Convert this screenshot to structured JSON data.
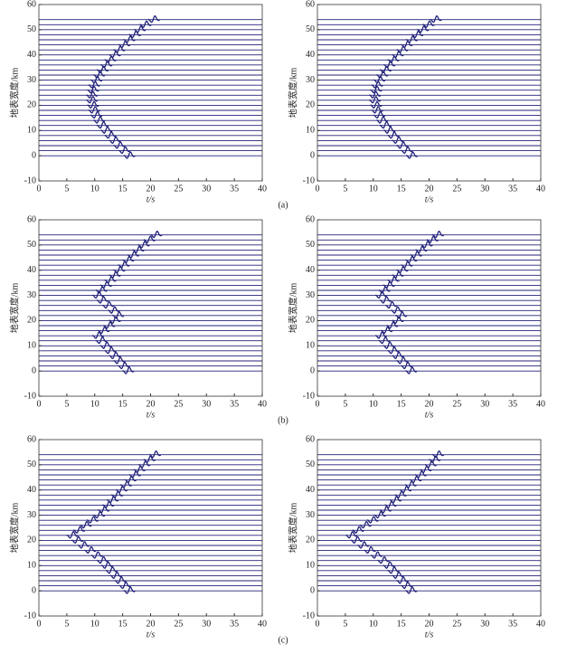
{
  "chart_data": [
    {
      "type": "seismic",
      "xlabel": "t/s",
      "ylabel": "地表宽度/km",
      "xlim": [
        0,
        40
      ],
      "ylim": [
        -10,
        60
      ],
      "xticks": [
        0,
        5,
        10,
        15,
        20,
        25,
        30,
        35,
        40
      ],
      "yticks": [
        -10,
        0,
        10,
        20,
        30,
        40,
        50,
        60
      ],
      "color": "#23237a",
      "offsets": [
        0,
        2,
        4,
        6,
        8,
        10,
        12,
        14,
        16,
        18,
        20,
        22,
        24,
        26,
        28,
        30,
        32,
        34,
        36,
        38,
        40,
        42,
        44,
        46,
        48,
        50,
        52,
        54
      ],
      "values": [
        16.2,
        15.3,
        14.4,
        13.6,
        12.8,
        12.1,
        11.4,
        10.8,
        10.3,
        9.9,
        9.7,
        9.5,
        9.5,
        9.7,
        9.9,
        10.3,
        10.8,
        11.4,
        12.1,
        12.8,
        13.6,
        14.4,
        15.3,
        16.2,
        17.2,
        18.1,
        19.1,
        20.6
      ]
    },
    {
      "type": "seismic",
      "xlabel": "t/s",
      "ylabel": "地表宽度/km",
      "xlim": [
        0,
        40
      ],
      "ylim": [
        -10,
        60
      ],
      "xticks": [
        0,
        5,
        10,
        15,
        20,
        25,
        30,
        35,
        40
      ],
      "yticks": [
        -10,
        0,
        10,
        20,
        30,
        40,
        50,
        60
      ],
      "color": "#23237a",
      "offsets": [
        0,
        2,
        4,
        6,
        8,
        10,
        12,
        14,
        16,
        18,
        20,
        22,
        24,
        26,
        28,
        30,
        32,
        34,
        36,
        38,
        40,
        42,
        44,
        46,
        48,
        50,
        52,
        54
      ],
      "values": [
        16.9,
        16.0,
        15.2,
        14.4,
        13.6,
        12.9,
        12.2,
        11.6,
        11.1,
        10.7,
        10.5,
        10.3,
        10.3,
        10.5,
        10.7,
        11.1,
        11.6,
        12.2,
        12.9,
        13.6,
        14.4,
        15.2,
        16.0,
        16.9,
        17.9,
        18.9,
        19.9,
        21.2
      ]
    },
    {
      "type": "seismic",
      "xlabel": "t/s",
      "ylabel": "地表宽度/km",
      "xlim": [
        0,
        40
      ],
      "ylim": [
        -10,
        60
      ],
      "xticks": [
        0,
        5,
        10,
        15,
        20,
        25,
        30,
        35,
        40
      ],
      "yticks": [
        -10,
        0,
        10,
        20,
        30,
        40,
        50,
        60
      ],
      "color": "#23237a",
      "offsets": [
        0,
        2,
        4,
        6,
        8,
        10,
        12,
        14,
        16,
        18,
        20,
        22,
        24,
        26,
        28,
        30,
        32,
        34,
        36,
        38,
        40,
        42,
        44,
        46,
        48,
        50,
        52,
        54
      ],
      "values": [
        16,
        15.2,
        14.4,
        13.6,
        12.8,
        12,
        11.2,
        10.6,
        11.6,
        12.6,
        13.6,
        14.2,
        13.4,
        12.4,
        11.4,
        10.6,
        11.2,
        12,
        12.8,
        13.6,
        14.4,
        15.2,
        16,
        16.9,
        17.8,
        18.8,
        19.8,
        21
      ]
    },
    {
      "type": "seismic",
      "xlabel": "t/s",
      "ylabel": "地表宽度/km",
      "xlim": [
        0,
        40
      ],
      "ylim": [
        -10,
        60
      ],
      "xticks": [
        0,
        5,
        10,
        15,
        20,
        25,
        30,
        35,
        40
      ],
      "yticks": [
        -10,
        0,
        10,
        20,
        30,
        40,
        50,
        60
      ],
      "color": "#23237a",
      "offsets": [
        0,
        2,
        4,
        6,
        8,
        10,
        12,
        14,
        16,
        18,
        20,
        22,
        24,
        26,
        28,
        30,
        32,
        34,
        36,
        38,
        40,
        42,
        44,
        46,
        48,
        50,
        52,
        54
      ],
      "values": [
        16.8,
        16,
        15.2,
        14.4,
        13.6,
        12.8,
        12,
        11.4,
        12.4,
        13.4,
        14.4,
        15,
        14.2,
        13.2,
        12.2,
        11.4,
        12,
        12.8,
        13.6,
        14.4,
        15.2,
        16,
        16.8,
        17.7,
        18.6,
        19.6,
        20.6,
        21.6
      ]
    },
    {
      "type": "seismic",
      "xlabel": "t/s",
      "ylabel": "地表宽度/km",
      "xlim": [
        0,
        40
      ],
      "ylim": [
        -10,
        60
      ],
      "xticks": [
        0,
        5,
        10,
        15,
        20,
        25,
        30,
        35,
        40
      ],
      "yticks": [
        -10,
        0,
        10,
        20,
        30,
        40,
        50,
        60
      ],
      "color": "#23237a",
      "offsets": [
        0,
        2,
        4,
        6,
        8,
        10,
        12,
        14,
        16,
        18,
        20,
        22,
        24,
        26,
        28,
        30,
        32,
        34,
        36,
        38,
        40,
        42,
        44,
        46,
        48,
        50,
        52,
        54
      ],
      "values": [
        16.2,
        15.4,
        14.6,
        13.8,
        13,
        12.2,
        11.4,
        10.4,
        9.2,
        8,
        6.9,
        6,
        7.2,
        8.4,
        9.6,
        10.8,
        11.6,
        12.4,
        13.2,
        14,
        14.8,
        15.6,
        16.4,
        17.2,
        18,
        18.9,
        19.8,
        20.8
      ]
    },
    {
      "type": "seismic",
      "xlabel": "t/s",
      "ylabel": "地表宽度/km",
      "xlim": [
        0,
        40
      ],
      "ylim": [
        -10,
        60
      ],
      "xticks": [
        0,
        5,
        10,
        15,
        20,
        25,
        30,
        35,
        40
      ],
      "yticks": [
        -10,
        0,
        10,
        20,
        30,
        40,
        50,
        60
      ],
      "color": "#23237a",
      "offsets": [
        0,
        2,
        4,
        6,
        8,
        10,
        12,
        14,
        16,
        18,
        20,
        22,
        24,
        26,
        28,
        30,
        32,
        34,
        36,
        38,
        40,
        42,
        44,
        46,
        48,
        50,
        52,
        54
      ],
      "values": [
        16.8,
        16,
        15.2,
        14.4,
        13.6,
        12.8,
        11.8,
        10.6,
        9.4,
        8.2,
        7,
        6.1,
        7.3,
        8.6,
        9.9,
        11.2,
        12.2,
        13.1,
        14,
        14.9,
        15.8,
        16.7,
        17.6,
        18.5,
        19.4,
        20.3,
        21,
        21.6
      ]
    }
  ],
  "captions": [
    "(a)",
    "(b)",
    "(c)"
  ]
}
